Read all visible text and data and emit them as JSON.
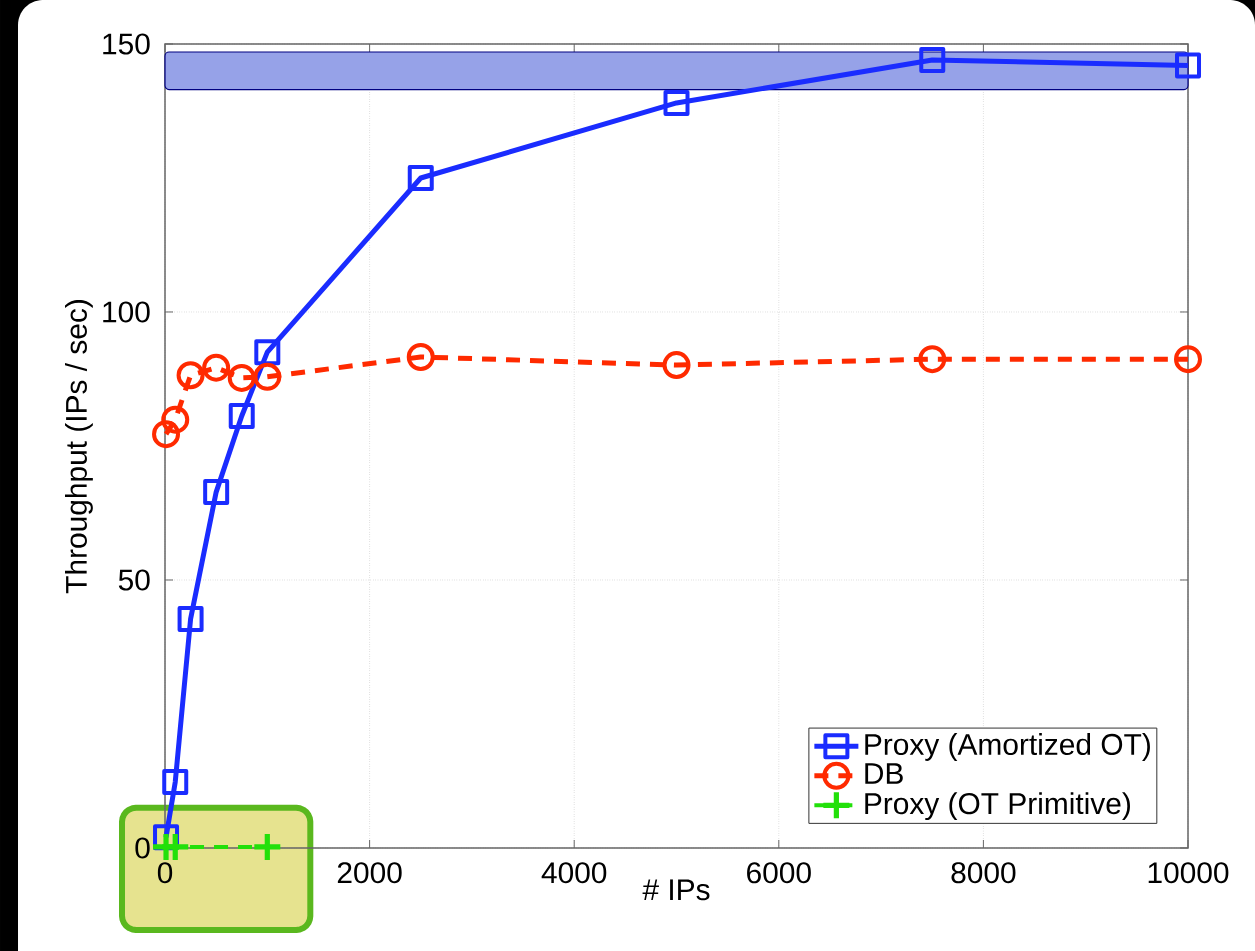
{
  "chart_data": {
    "type": "line",
    "xlabel": "# IPs",
    "ylabel": "Throughput (IPs / sec)",
    "x": [
      10,
      100,
      250,
      500,
      750,
      1000,
      2500,
      5000,
      7500,
      10000
    ],
    "series": [
      {
        "name": "Proxy (Amortized OT)",
        "color": "#1a2cff",
        "marker": "square",
        "line_style": "solid",
        "values": [
          2,
          12.3,
          42.7,
          66.4,
          80.6,
          92.5,
          125,
          139,
          147,
          146
        ]
      },
      {
        "name": "DB",
        "color": "#ff2a00",
        "marker": "circle",
        "line_style": "dashed",
        "values": [
          77.2,
          79.9,
          88.2,
          89.6,
          87.7,
          87.9,
          91.6,
          90.1,
          91.2,
          91.2
        ]
      },
      {
        "name": "Proxy (OT Primitive)",
        "color": "#22e00a",
        "marker": "cross",
        "line_style": "dashed",
        "x": [
          10,
          100,
          1000
        ],
        "values": [
          0.2,
          0.2,
          0.2
        ]
      }
    ],
    "xlim": [
      0,
      10000
    ],
    "ylim": [
      0,
      150
    ],
    "xticks": [
      0,
      2000,
      4000,
      6000,
      8000,
      10000
    ],
    "yticks": [
      0,
      50,
      100,
      150
    ],
    "bands": [
      {
        "axis": "y",
        "from": 141.5,
        "to": 148.5,
        "color": "#96a2e8"
      }
    ],
    "grid": true,
    "legend": "bottom right"
  }
}
